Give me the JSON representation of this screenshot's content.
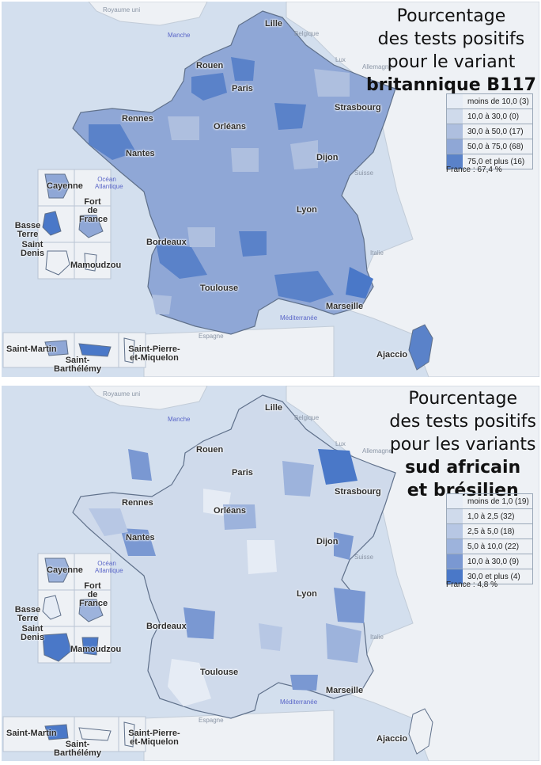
{
  "colors": {
    "sea": "#d3dfee",
    "land": "#eef1f5",
    "border": "#6f7f96",
    "q1": "#e6ecf5",
    "q2": "#cfdaeb",
    "q3": "#aebfdf",
    "q4": "#8fa7d6",
    "q5": "#6f8fcf",
    "q6": "#4a78c8"
  },
  "geography": {
    "uk": "Royaume uni",
    "belgium": "Belgique",
    "lux": "Lux",
    "germany": "Allemagne",
    "switzerland": "Suisse",
    "italy": "Italie",
    "spain": "Espagne",
    "channel": "Manche",
    "atlantic": "Océan Atlantique",
    "mediterranean": "Méditerranée"
  },
  "cities": {
    "lille": "Lille",
    "rouen": "Rouen",
    "paris": "Paris",
    "strasbourg": "Strasbourg",
    "rennes": "Rennes",
    "orleans": "Orléans",
    "nantes": "Nantes",
    "dijon": "Dijon",
    "lyon": "Lyon",
    "bordeaux": "Bordeaux",
    "toulouse": "Toulouse",
    "marseille": "Marseille",
    "ajaccio": "Ajaccio"
  },
  "insets": {
    "cayenne": "Cayenne",
    "fort_de_france": "Fort de France",
    "basse_terre": "Basse Terre",
    "saint_denis": "Saint Denis",
    "mamoudzou": "Mamoudzou",
    "saint_martin": "Saint-Martin",
    "saint_barthelemy": "Saint-Barthélémy",
    "saint_pierre": "Saint-Pierre-et-Miquelon"
  },
  "map_uk": {
    "title_line1": "Pourcentage",
    "title_line2": "des tests positifs",
    "title_line3": "pour le variant",
    "title_bold1": "britannique B117",
    "title_bold2": "",
    "legend": [
      {
        "label": "moins de 10,0 (3)",
        "color": "#e6ecf5"
      },
      {
        "label": "10,0 à 30,0 (0)",
        "color": "#cfdaeb"
      },
      {
        "label": "30,0 à 50,0 (17)",
        "color": "#aebfdf"
      },
      {
        "label": "50,0 à 75,0 (68)",
        "color": "#8fa7d6"
      },
      {
        "label": "75,0 et plus (16)",
        "color": "#5a82c9"
      }
    ],
    "total": "France : 67,4 %"
  },
  "map_sa": {
    "title_line1": "Pourcentage",
    "title_line2": "des tests positifs",
    "title_line3": "pour les variants",
    "title_bold1": "sud africain",
    "title_bold2": "et brésilien",
    "legend": [
      {
        "label": "moins de 1,0 (19)",
        "color": "#e6ecf5"
      },
      {
        "label": "1,0 à 2,5 (32)",
        "color": "#cfdaeb"
      },
      {
        "label": "2,5 à 5,0 (18)",
        "color": "#b7c7e4"
      },
      {
        "label": "5,0 à 10,0 (22)",
        "color": "#9db3dc"
      },
      {
        "label": "10,0 à 30,0 (9)",
        "color": "#7a98d2"
      },
      {
        "label": "30,0 et plus (4)",
        "color": "#4a78c8"
      }
    ],
    "total": "France : 4,8 %"
  }
}
